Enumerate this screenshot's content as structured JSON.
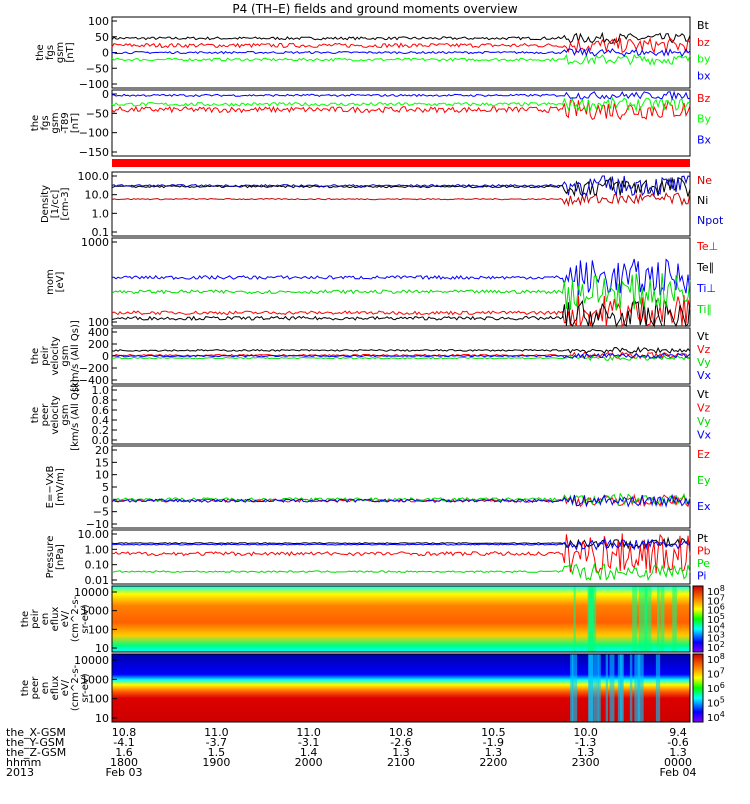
{
  "chart_data": {
    "type": "line",
    "title": "P4 (TH–E) fields and ground moments overview",
    "x_axis": {
      "rows": [
        {
          "label": "the_X-GSM",
          "values": [
            "10.8",
            "11.0",
            "11.0",
            "10.8",
            "10.5",
            "10.0",
            "9.4"
          ]
        },
        {
          "label": "the_Y-GSM",
          "values": [
            "-4.1",
            "-3.7",
            "-3.1",
            "-2.6",
            "-1.9",
            "-1.3",
            "-0.6"
          ]
        },
        {
          "label": "the_Z-GSM",
          "values": [
            "1.6",
            "1.5",
            "1.4",
            "1.3",
            "1.3",
            "1.3",
            "1.3"
          ]
        },
        {
          "label": "hhmm",
          "values": [
            "1800",
            "1900",
            "2000",
            "2100",
            "2200",
            "2300",
            "0000"
          ]
        },
        {
          "label": "2013",
          "values": [
            "Feb 03",
            "",
            "",
            "",
            "",
            "",
            "Feb 04"
          ]
        }
      ]
    },
    "panels": [
      {
        "ylabel": [
          "the",
          "fgs",
          "gsm",
          "[nT]"
        ],
        "yticks": [
          "100",
          "50",
          "0",
          "−50",
          "−100"
        ],
        "ylim": [
          -100,
          100
        ],
        "log": false,
        "series": [
          {
            "name": "Bt",
            "color": "#000000",
            "base": 40,
            "noise": 4
          },
          {
            "name": "bz",
            "color": "#ff0000",
            "base": 20,
            "noise": 6
          },
          {
            "name": "by",
            "color": "#00ff00",
            "base": -20,
            "noise": 4
          },
          {
            "name": "bx",
            "color": "#0000ff",
            "base": 0,
            "noise": 3
          }
        ]
      },
      {
        "ylabel": [
          "the",
          "fgs",
          "gsm",
          "-T89",
          "[nT]"
        ],
        "yticks": [
          "0",
          "−50",
          "−100",
          "−150"
        ],
        "ylim": [
          -170,
          15
        ],
        "log": false,
        "series": [
          {
            "name": "Bz",
            "color": "#ff0000",
            "base": -40,
            "noise": 8
          },
          {
            "name": "By",
            "color": "#00ff00",
            "base": -25,
            "noise": 5
          },
          {
            "name": "Bx",
            "color": "#0000ff",
            "base": 0,
            "noise": 3
          }
        ]
      },
      {
        "ylabel": [
          "Density",
          "[1/cc]",
          "[cm-3]"
        ],
        "yticks": [
          "100.0",
          "10.0",
          "1.0",
          "0.1"
        ],
        "ylim": [
          0.1,
          200
        ],
        "log": true,
        "series": [
          {
            "name": "Ne",
            "color": "#cc0000",
            "base": 8,
            "noise": 0.03
          },
          {
            "name": "Ni",
            "color": "#000000",
            "base": 35,
            "noise": 0.05
          },
          {
            "name": "Npot",
            "color": "#0000cc",
            "base": 40,
            "noise": 0.05
          }
        ]
      },
      {
        "ylabel": [
          "mom",
          "[eV]"
        ],
        "yticks": [
          "1000",
          "100"
        ],
        "ylim": [
          30,
          3000
        ],
        "log": true,
        "series": [
          {
            "name": "Te⊥",
            "color": "#ff0000",
            "base": 60,
            "noise": 0.04
          },
          {
            "name": "Te∥",
            "color": "#000000",
            "base": 45,
            "noise": 0.04
          },
          {
            "name": "Ti⊥",
            "color": "#0000ff",
            "base": 380,
            "noise": 0.04
          },
          {
            "name": "Ti∥",
            "color": "#00dd00",
            "base": 180,
            "noise": 0.04
          }
        ]
      },
      {
        "ylabel": [
          "the",
          "peir",
          "velocity",
          "gsm",
          "[km/s (All Qs)]"
        ],
        "yticks": [
          "400",
          "200",
          "0",
          "−200",
          "−400"
        ],
        "ylim": [
          -400,
          400
        ],
        "log": false,
        "series": [
          {
            "name": "Vt",
            "color": "#000000",
            "base": 80,
            "noise": 12
          },
          {
            "name": "Vz",
            "color": "#ff0000",
            "base": 10,
            "noise": 12
          },
          {
            "name": "Vy",
            "color": "#00dd00",
            "base": -30,
            "noise": 10
          },
          {
            "name": "Vx",
            "color": "#0000ff",
            "base": 0,
            "noise": 10
          }
        ]
      },
      {
        "ylabel": [
          "the",
          "peer",
          "velocity",
          "gsm",
          "[km/s (All Qs)]"
        ],
        "yticks": [
          "1.0",
          "0.8",
          "0.6",
          "0.4",
          "0.2",
          "0.0"
        ],
        "ylim": [
          0,
          1
        ],
        "log": false,
        "series": [
          {
            "name": "Vt",
            "color": "#000000",
            "base": null,
            "noise": 0
          },
          {
            "name": "Vz",
            "color": "#ff0000",
            "base": null,
            "noise": 0
          },
          {
            "name": "Vy",
            "color": "#00dd00",
            "base": null,
            "noise": 0
          },
          {
            "name": "Vx",
            "color": "#0000ff",
            "base": null,
            "noise": 0
          }
        ]
      },
      {
        "ylabel": [
          "E=−VxB",
          "[mV/m]"
        ],
        "yticks": [
          "20",
          "15",
          "10",
          "5",
          "0",
          "−5",
          "−10"
        ],
        "ylim": [
          -10,
          20
        ],
        "log": false,
        "series": [
          {
            "name": "Ez",
            "color": "#ff0000",
            "base": 0,
            "noise": 0.6
          },
          {
            "name": "Ey",
            "color": "#00dd00",
            "base": 0.5,
            "noise": 0.6
          },
          {
            "name": "Ex",
            "color": "#0000ff",
            "base": 0,
            "noise": 0.6
          }
        ]
      },
      {
        "ylabel": [
          "Pressure",
          "[nPa]"
        ],
        "yticks": [
          "10.00",
          "1.00",
          "0.10",
          "0.01"
        ],
        "ylim": [
          0.007,
          14
        ],
        "log": true,
        "series": [
          {
            "name": "Pt",
            "color": "#000000",
            "base": 2.2,
            "noise": 0.03
          },
          {
            "name": "Pb",
            "color": "#ff0000",
            "base": 0.5,
            "noise": 0.12
          },
          {
            "name": "Pe",
            "color": "#00dd00",
            "base": 0.04,
            "noise": 0.05
          },
          {
            "name": "Pi",
            "color": "#0000ff",
            "base": 1.8,
            "noise": 0.03
          }
        ]
      }
    ],
    "spectrograms": [
      {
        "ylabel": [
          "the",
          "peir",
          "en",
          "eflux",
          "eV/",
          "(cm^2-s-",
          "sr-eV)"
        ],
        "yticks": [
          "10000",
          "1000",
          "100",
          "10"
        ],
        "colorbar": {
          "ticks": [
            "10^8",
            "10^7",
            "10^6",
            "10^5",
            "10^4",
            "10^3",
            "10^2"
          ]
        }
      },
      {
        "ylabel": [
          "the",
          "peer",
          "en",
          "eflux",
          "eV/",
          "(cm^2-s-",
          "sr-eV)"
        ],
        "yticks": [
          "10000",
          "1000",
          "100",
          "10"
        ],
        "colorbar": {
          "ticks": [
            "10^8",
            "10^7",
            "10^6",
            "10^5",
            "10^4"
          ]
        }
      }
    ]
  }
}
